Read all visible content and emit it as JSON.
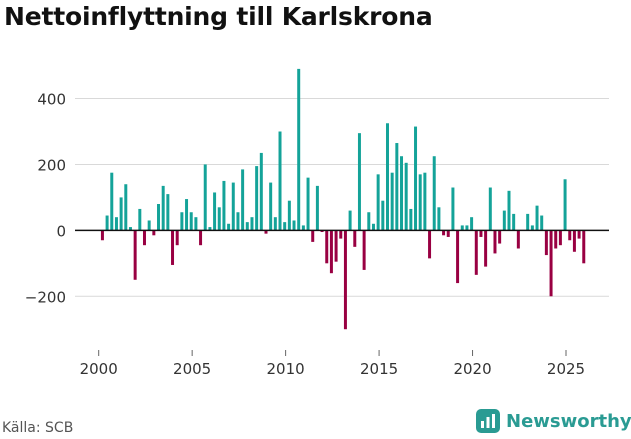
{
  "title": "Nettoinflyttning till Karlskrona",
  "source": "Källa: SCB",
  "brand": {
    "name": "Newsworthy"
  },
  "colors": {
    "positive": "#14a399",
    "negative": "#990042",
    "grid": "#d9d9d9",
    "axis": "#111111",
    "text": "#333333",
    "brand": "#2a9b93"
  },
  "chart_data": {
    "type": "bar",
    "title": "Nettoinflyttning till Karlskrona",
    "xlabel": "",
    "ylabel": "",
    "ylim": [
      -360,
      520
    ],
    "xlim": [
      1999.0,
      2027.3
    ],
    "y_ticks": [
      {
        "value": 400,
        "label": "400"
      },
      {
        "value": 200,
        "label": "200"
      },
      {
        "value": 0,
        "label": "0"
      },
      {
        "value": -200,
        "label": "−200"
      }
    ],
    "x_ticks": [
      {
        "value": 2000,
        "label": "2000"
      },
      {
        "value": 2005,
        "label": "2005"
      },
      {
        "value": 2010,
        "label": "2010"
      },
      {
        "value": 2015,
        "label": "2015"
      },
      {
        "value": 2020,
        "label": "2020"
      },
      {
        "value": 2025,
        "label": "2025"
      }
    ],
    "bar_width_years": 0.16,
    "period": "quarterly",
    "x": [
      2000.2,
      2000.45,
      2000.7,
      2000.95,
      2001.2,
      2001.45,
      2001.7,
      2001.95,
      2002.2,
      2002.45,
      2002.7,
      2002.95,
      2003.2,
      2003.45,
      2003.7,
      2003.95,
      2004.2,
      2004.45,
      2004.7,
      2004.95,
      2005.2,
      2005.45,
      2005.7,
      2005.95,
      2006.2,
      2006.45,
      2006.7,
      2006.95,
      2007.2,
      2007.45,
      2007.7,
      2007.95,
      2008.2,
      2008.45,
      2008.7,
      2008.95,
      2009.2,
      2009.45,
      2009.7,
      2009.95,
      2010.2,
      2010.45,
      2010.7,
      2010.95,
      2011.2,
      2011.45,
      2011.7,
      2011.95,
      2012.2,
      2012.45,
      2012.7,
      2012.95,
      2013.2,
      2013.45,
      2013.7,
      2013.95,
      2014.2,
      2014.45,
      2014.7,
      2014.95,
      2015.2,
      2015.45,
      2015.7,
      2015.95,
      2016.2,
      2016.45,
      2016.7,
      2016.95,
      2017.2,
      2017.45,
      2017.7,
      2017.95,
      2018.2,
      2018.45,
      2018.7,
      2018.95,
      2019.2,
      2019.45,
      2019.7,
      2019.95,
      2020.2,
      2020.45,
      2020.7,
      2020.95,
      2021.2,
      2021.45,
      2021.7,
      2021.95,
      2022.2,
      2022.45,
      2022.7,
      2022.95,
      2023.2,
      2023.45,
      2023.7,
      2023.95,
      2024.2,
      2024.45,
      2024.7,
      2024.95,
      2025.2,
      2025.45,
      2025.7,
      2025.95
    ],
    "series": [
      {
        "name": "Nettoinflyttning",
        "values": [
          -30,
          45,
          175,
          40,
          100,
          140,
          10,
          -150,
          65,
          -45,
          30,
          -15,
          80,
          135,
          110,
          -105,
          -45,
          55,
          95,
          55,
          40,
          -45,
          200,
          10,
          115,
          70,
          150,
          20,
          145,
          55,
          185,
          25,
          40,
          195,
          235,
          -10,
          145,
          40,
          300,
          25,
          90,
          30,
          490,
          15,
          160,
          -35,
          135,
          -5,
          -100,
          -130,
          -95,
          -25,
          -300,
          60,
          -50,
          295,
          -120,
          55,
          20,
          170,
          90,
          325,
          175,
          265,
          225,
          205,
          65,
          315,
          170,
          175,
          -85,
          225,
          70,
          -15,
          -20,
          130,
          -160,
          15,
          15,
          40,
          -135,
          -20,
          -110,
          130,
          -70,
          -40,
          60,
          120,
          50,
          -55,
          0,
          50,
          15,
          75,
          45,
          -75,
          -200,
          -55,
          -45,
          155,
          -30,
          -65,
          -25,
          -100
        ]
      }
    ]
  }
}
